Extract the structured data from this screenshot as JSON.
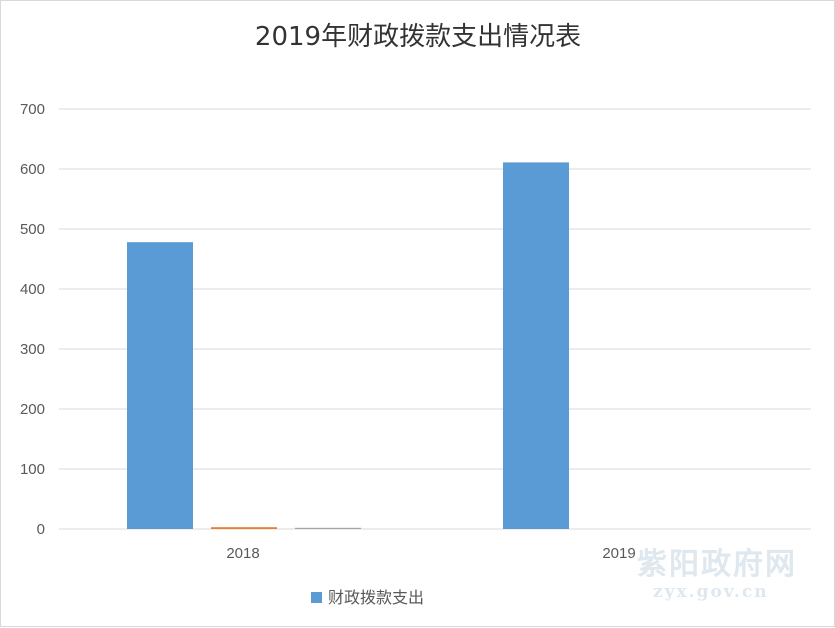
{
  "chart_data": {
    "type": "bar",
    "title": "2019年财政拨款支出情况表",
    "categories": [
      "2018",
      "2019"
    ],
    "series": [
      {
        "name": "财政拨款支出",
        "values": [
          478,
          611
        ],
        "color": "#5B9BD5"
      },
      {
        "values": [
          3,
          0
        ],
        "color": "#ED7D31"
      },
      {
        "values": [
          2,
          0
        ],
        "color": "#A5A5A5"
      }
    ],
    "ylim": [
      0,
      700
    ],
    "yticks": [
      0,
      100,
      200,
      300,
      400,
      500,
      600,
      700
    ],
    "grid": true,
    "legend": {
      "position": "bottom-left",
      "entries": [
        "财政拨款支出"
      ]
    }
  },
  "watermark": {
    "name": "紫阳政府网",
    "domain": "zyx.gov.cn"
  }
}
